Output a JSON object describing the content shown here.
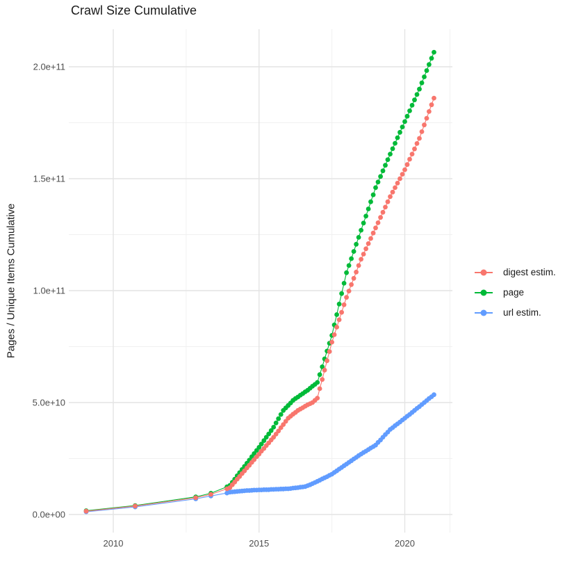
{
  "page": {
    "background": "#ffffff"
  },
  "chart_data": {
    "type": "scatter",
    "title": "Crawl Size Cumulative",
    "xlabel": "",
    "ylabel": "Pages / Unique Items Cumulative",
    "grid": true,
    "legend_position": "right",
    "xlim": [
      2008.45,
      2021.65
    ],
    "ylim": [
      0,
      217000000000.0
    ],
    "values_unit": "1e9",
    "x_ticks": [
      {
        "value": 2010,
        "label": "2010"
      },
      {
        "value": 2015,
        "label": "2015"
      },
      {
        "value": 2020,
        "label": "2020"
      }
    ],
    "y_ticks": [
      {
        "value": 0,
        "label": "0.0e+00"
      },
      {
        "value": 50,
        "label": "5.0e+10"
      },
      {
        "value": 100,
        "label": "1.0e+11"
      },
      {
        "value": 150,
        "label": "1.5e+11"
      },
      {
        "value": 200,
        "label": "2.0e+11"
      }
    ],
    "x_minor": [
      2012.5,
      2017.5,
      2021.55
    ],
    "y_minor": [
      25,
      75,
      125,
      175
    ],
    "series": [
      {
        "name": "digest estim.",
        "color": "#F8766D",
        "points": [
          [
            2009.07,
            1.5
          ],
          [
            2010.75,
            3.8
          ],
          [
            2012.83,
            7.5
          ],
          [
            2013.35,
            9.0
          ],
          [
            2013.9,
            11.5
          ],
          [
            2014.0,
            12.0
          ],
          [
            2014.083,
            13.3
          ],
          [
            2014.167,
            14.5
          ],
          [
            2014.25,
            15.8
          ],
          [
            2014.333,
            17.0
          ],
          [
            2014.417,
            18.3
          ],
          [
            2014.5,
            19.5
          ],
          [
            2014.583,
            20.8
          ],
          [
            2014.667,
            22.0
          ],
          [
            2014.75,
            23.3
          ],
          [
            2014.833,
            24.5
          ],
          [
            2014.917,
            25.8
          ],
          [
            2015.0,
            27.0
          ],
          [
            2015.083,
            28.3
          ],
          [
            2015.167,
            29.5
          ],
          [
            2015.25,
            30.8
          ],
          [
            2015.333,
            32.0
          ],
          [
            2015.417,
            33.3
          ],
          [
            2015.5,
            34.5
          ],
          [
            2015.583,
            35.9
          ],
          [
            2015.667,
            37.3
          ],
          [
            2015.75,
            38.8
          ],
          [
            2015.833,
            40.2
          ],
          [
            2015.917,
            41.6
          ],
          [
            2016.0,
            43.0
          ],
          [
            2016.083,
            43.9
          ],
          [
            2016.167,
            44.8
          ],
          [
            2016.25,
            45.6
          ],
          [
            2016.333,
            46.5
          ],
          [
            2016.417,
            47.1
          ],
          [
            2016.5,
            47.7
          ],
          [
            2016.583,
            48.4
          ],
          [
            2016.667,
            49.0
          ],
          [
            2016.75,
            49.5
          ],
          [
            2016.833,
            50.0
          ],
          [
            2016.917,
            51.0
          ],
          [
            2017.0,
            52.0
          ],
          [
            2017.083,
            56.2
          ],
          [
            2017.167,
            60.3
          ],
          [
            2017.25,
            64.5
          ],
          [
            2017.333,
            68.7
          ],
          [
            2017.417,
            72.8
          ],
          [
            2017.5,
            77.0
          ],
          [
            2017.583,
            80.3
          ],
          [
            2017.667,
            83.7
          ],
          [
            2017.75,
            87.0
          ],
          [
            2017.833,
            90.3
          ],
          [
            2017.917,
            93.7
          ],
          [
            2018.0,
            97.0
          ],
          [
            2018.083,
            99.8
          ],
          [
            2018.167,
            102.7
          ],
          [
            2018.25,
            105.5
          ],
          [
            2018.333,
            108.3
          ],
          [
            2018.417,
            111.2
          ],
          [
            2018.5,
            114.0
          ],
          [
            2018.583,
            116.3
          ],
          [
            2018.667,
            118.7
          ],
          [
            2018.75,
            121.0
          ],
          [
            2018.833,
            123.3
          ],
          [
            2018.917,
            125.7
          ],
          [
            2019.0,
            128.0
          ],
          [
            2019.083,
            130.3
          ],
          [
            2019.167,
            132.7
          ],
          [
            2019.25,
            135.0
          ],
          [
            2019.333,
            137.3
          ],
          [
            2019.417,
            139.7
          ],
          [
            2019.5,
            142.0
          ],
          [
            2019.583,
            144.0
          ],
          [
            2019.667,
            146.0
          ],
          [
            2019.75,
            148.0
          ],
          [
            2019.833,
            150.0
          ],
          [
            2019.917,
            152.0
          ],
          [
            2020.0,
            154.0
          ],
          [
            2020.083,
            156.3
          ],
          [
            2020.167,
            158.7
          ],
          [
            2020.25,
            161.0
          ],
          [
            2020.333,
            163.3
          ],
          [
            2020.417,
            165.7
          ],
          [
            2020.5,
            168.0
          ],
          [
            2020.583,
            171.0
          ],
          [
            2020.667,
            174.0
          ],
          [
            2020.75,
            177.0
          ],
          [
            2020.833,
            180.0
          ],
          [
            2020.917,
            183.0
          ],
          [
            2021.0,
            186.0
          ]
        ]
      },
      {
        "name": "page",
        "color": "#00BA38",
        "points": [
          [
            2009.07,
            1.7
          ],
          [
            2010.75,
            4.0
          ],
          [
            2012.83,
            7.9
          ],
          [
            2013.35,
            9.5
          ],
          [
            2013.9,
            12.4
          ],
          [
            2014.0,
            13.0
          ],
          [
            2014.083,
            14.4
          ],
          [
            2014.167,
            15.8
          ],
          [
            2014.25,
            17.3
          ],
          [
            2014.333,
            18.7
          ],
          [
            2014.417,
            20.1
          ],
          [
            2014.5,
            21.5
          ],
          [
            2014.583,
            22.9
          ],
          [
            2014.667,
            24.3
          ],
          [
            2014.75,
            25.8
          ],
          [
            2014.833,
            27.2
          ],
          [
            2014.917,
            28.6
          ],
          [
            2015.0,
            30.0
          ],
          [
            2015.083,
            31.5
          ],
          [
            2015.167,
            33.0
          ],
          [
            2015.25,
            34.5
          ],
          [
            2015.333,
            36.0
          ],
          [
            2015.417,
            37.5
          ],
          [
            2015.5,
            39.0
          ],
          [
            2015.583,
            40.9
          ],
          [
            2015.667,
            42.8
          ],
          [
            2015.75,
            44.7
          ],
          [
            2015.833,
            46.5
          ],
          [
            2015.917,
            47.6
          ],
          [
            2016.0,
            48.7
          ],
          [
            2016.083,
            49.8
          ],
          [
            2016.167,
            51.0
          ],
          [
            2016.25,
            51.8
          ],
          [
            2016.333,
            52.5
          ],
          [
            2016.417,
            53.3
          ],
          [
            2016.5,
            54.0
          ],
          [
            2016.583,
            54.8
          ],
          [
            2016.667,
            55.5
          ],
          [
            2016.75,
            56.4
          ],
          [
            2016.833,
            57.3
          ],
          [
            2016.917,
            58.1
          ],
          [
            2017.0,
            59.0
          ],
          [
            2017.083,
            62.5
          ],
          [
            2017.167,
            66.0
          ],
          [
            2017.25,
            69.5
          ],
          [
            2017.333,
            73.0
          ],
          [
            2017.417,
            76.5
          ],
          [
            2017.5,
            80.0
          ],
          [
            2017.583,
            84.7
          ],
          [
            2017.667,
            89.3
          ],
          [
            2017.75,
            94.0
          ],
          [
            2017.833,
            98.7
          ],
          [
            2017.917,
            103.3
          ],
          [
            2018.0,
            108.0
          ],
          [
            2018.083,
            111.2
          ],
          [
            2018.167,
            114.3
          ],
          [
            2018.25,
            117.5
          ],
          [
            2018.333,
            120.7
          ],
          [
            2018.417,
            123.8
          ],
          [
            2018.5,
            127.0
          ],
          [
            2018.583,
            130.2
          ],
          [
            2018.667,
            133.3
          ],
          [
            2018.75,
            136.5
          ],
          [
            2018.833,
            139.7
          ],
          [
            2018.917,
            142.8
          ],
          [
            2019.0,
            146.0
          ],
          [
            2019.083,
            148.5
          ],
          [
            2019.167,
            151.0
          ],
          [
            2019.25,
            153.5
          ],
          [
            2019.333,
            156.0
          ],
          [
            2019.417,
            158.5
          ],
          [
            2019.5,
            161.0
          ],
          [
            2019.583,
            163.4
          ],
          [
            2019.667,
            165.8
          ],
          [
            2019.75,
            168.3
          ],
          [
            2019.833,
            170.7
          ],
          [
            2019.917,
            173.1
          ],
          [
            2020.0,
            175.5
          ],
          [
            2020.083,
            177.9
          ],
          [
            2020.167,
            180.3
          ],
          [
            2020.25,
            182.8
          ],
          [
            2020.333,
            185.2
          ],
          [
            2020.417,
            187.6
          ],
          [
            2020.5,
            190.0
          ],
          [
            2020.583,
            192.8
          ],
          [
            2020.667,
            195.5
          ],
          [
            2020.75,
            198.3
          ],
          [
            2020.833,
            201.0
          ],
          [
            2020.917,
            203.8
          ],
          [
            2021.0,
            206.5
          ]
        ]
      },
      {
        "name": "url estim.",
        "color": "#619CFF",
        "points": [
          [
            2009.07,
            1.2
          ],
          [
            2010.75,
            3.4
          ],
          [
            2012.83,
            7.0
          ],
          [
            2013.35,
            8.3
          ],
          [
            2013.9,
            9.6
          ],
          [
            2014.0,
            10.0
          ],
          [
            2014.083,
            10.1
          ],
          [
            2014.167,
            10.2
          ],
          [
            2014.25,
            10.3
          ],
          [
            2014.333,
            10.4
          ],
          [
            2014.417,
            10.5
          ],
          [
            2014.5,
            10.6
          ],
          [
            2014.583,
            10.7
          ],
          [
            2014.667,
            10.7
          ],
          [
            2014.75,
            10.8
          ],
          [
            2014.833,
            10.9
          ],
          [
            2014.917,
            10.9
          ],
          [
            2015.0,
            11.0
          ],
          [
            2015.083,
            11.0
          ],
          [
            2015.167,
            11.1
          ],
          [
            2015.25,
            11.1
          ],
          [
            2015.333,
            11.1
          ],
          [
            2015.417,
            11.2
          ],
          [
            2015.5,
            11.2
          ],
          [
            2015.583,
            11.3
          ],
          [
            2015.667,
            11.3
          ],
          [
            2015.75,
            11.4
          ],
          [
            2015.833,
            11.4
          ],
          [
            2015.917,
            11.5
          ],
          [
            2016.0,
            11.5
          ],
          [
            2016.083,
            11.6
          ],
          [
            2016.167,
            11.8
          ],
          [
            2016.25,
            11.9
          ],
          [
            2016.333,
            12.0
          ],
          [
            2016.417,
            12.2
          ],
          [
            2016.5,
            12.3
          ],
          [
            2016.583,
            12.5
          ],
          [
            2016.667,
            12.9
          ],
          [
            2016.75,
            13.3
          ],
          [
            2016.833,
            13.8
          ],
          [
            2016.917,
            14.3
          ],
          [
            2017.0,
            14.8
          ],
          [
            2017.083,
            15.3
          ],
          [
            2017.167,
            15.9
          ],
          [
            2017.25,
            16.4
          ],
          [
            2017.333,
            16.9
          ],
          [
            2017.417,
            17.5
          ],
          [
            2017.5,
            18.0
          ],
          [
            2017.583,
            18.8
          ],
          [
            2017.667,
            19.5
          ],
          [
            2017.75,
            20.3
          ],
          [
            2017.833,
            21.0
          ],
          [
            2017.917,
            21.8
          ],
          [
            2018.0,
            22.5
          ],
          [
            2018.083,
            23.3
          ],
          [
            2018.167,
            24.0
          ],
          [
            2018.25,
            24.8
          ],
          [
            2018.333,
            25.5
          ],
          [
            2018.417,
            26.3
          ],
          [
            2018.5,
            27.0
          ],
          [
            2018.583,
            27.7
          ],
          [
            2018.667,
            28.3
          ],
          [
            2018.75,
            29.0
          ],
          [
            2018.833,
            29.7
          ],
          [
            2018.917,
            30.3
          ],
          [
            2019.0,
            31.0
          ],
          [
            2019.083,
            32.2
          ],
          [
            2019.167,
            33.3
          ],
          [
            2019.25,
            34.5
          ],
          [
            2019.333,
            35.7
          ],
          [
            2019.417,
            36.8
          ],
          [
            2019.5,
            38.0
          ],
          [
            2019.583,
            38.8
          ],
          [
            2019.667,
            39.7
          ],
          [
            2019.75,
            40.5
          ],
          [
            2019.833,
            41.3
          ],
          [
            2019.917,
            42.2
          ],
          [
            2020.0,
            43.0
          ],
          [
            2020.083,
            43.9
          ],
          [
            2020.167,
            44.7
          ],
          [
            2020.25,
            45.6
          ],
          [
            2020.333,
            46.5
          ],
          [
            2020.417,
            47.4
          ],
          [
            2020.5,
            48.2
          ],
          [
            2020.583,
            49.1
          ],
          [
            2020.667,
            50.0
          ],
          [
            2020.75,
            50.9
          ],
          [
            2020.833,
            51.8
          ],
          [
            2020.917,
            52.6
          ],
          [
            2021.0,
            53.5
          ]
        ]
      }
    ]
  }
}
